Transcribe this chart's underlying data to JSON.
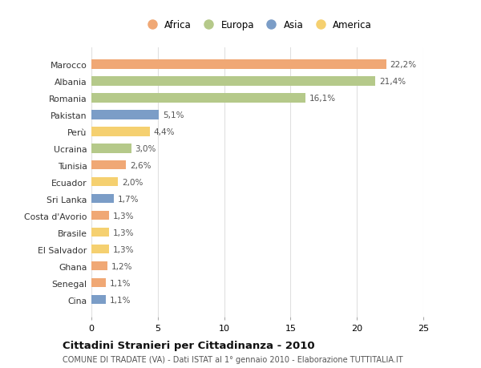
{
  "categories": [
    "Marocco",
    "Albania",
    "Romania",
    "Pakistan",
    "Perù",
    "Ucraina",
    "Tunisia",
    "Ecuador",
    "Sri Lanka",
    "Costa d'Avorio",
    "Brasile",
    "El Salvador",
    "Ghana",
    "Senegal",
    "Cina"
  ],
  "values": [
    22.2,
    21.4,
    16.1,
    5.1,
    4.4,
    3.0,
    2.6,
    2.0,
    1.7,
    1.3,
    1.3,
    1.3,
    1.2,
    1.1,
    1.1
  ],
  "labels": [
    "22,2%",
    "21,4%",
    "16,1%",
    "5,1%",
    "4,4%",
    "3,0%",
    "2,6%",
    "2,0%",
    "1,7%",
    "1,3%",
    "1,3%",
    "1,3%",
    "1,2%",
    "1,1%",
    "1,1%"
  ],
  "continents": [
    "Africa",
    "Europa",
    "Europa",
    "Asia",
    "America",
    "Europa",
    "Africa",
    "America",
    "Asia",
    "Africa",
    "America",
    "America",
    "Africa",
    "Africa",
    "Asia"
  ],
  "colors": {
    "Africa": "#F0A875",
    "Europa": "#B5C98A",
    "Asia": "#7B9DC7",
    "America": "#F5D070"
  },
  "legend_order": [
    "Africa",
    "Europa",
    "Asia",
    "America"
  ],
  "title": "Cittadini Stranieri per Cittadinanza - 2010",
  "subtitle": "COMUNE DI TRADATE (VA) - Dati ISTAT al 1° gennaio 2010 - Elaborazione TUTTITALIA.IT",
  "xlim": [
    0,
    25
  ],
  "xticks": [
    0,
    5,
    10,
    15,
    20,
    25
  ],
  "background_color": "#ffffff",
  "grid_color": "#e0e0e0"
}
